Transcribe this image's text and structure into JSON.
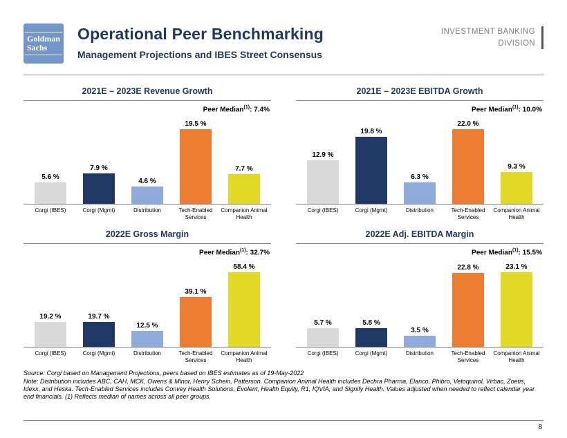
{
  "header": {
    "logo_line1": "Goldman",
    "logo_line2": "Sachs",
    "title": "Operational Peer Benchmarking",
    "subtitle": "Management Projections and IBES Street Consensus",
    "division_line1": "INVESTMENT BANKING",
    "division_line2": "DIVISION"
  },
  "bar_colors": [
    "#d9d9d9",
    "#1f3864",
    "#8faadc",
    "#ed7d31",
    "#e2d926"
  ],
  "chart_data": [
    {
      "type": "bar",
      "title": "2021E – 2023E Revenue Growth",
      "peer_median_label": "Peer Median",
      "peer_median_sup": "(1)",
      "peer_median_value": ": 7.4%",
      "categories": [
        "Corgi (IBES)",
        "Corgi (Mgmt)",
        "Distribution",
        "Tech-Enabled Services",
        "Companion Animal Health"
      ],
      "values": [
        5.6,
        7.9,
        4.6,
        19.5,
        7.7
      ],
      "value_labels": [
        "5.6 %",
        "7.9 %",
        "4.6 %",
        "19.5 %",
        "7.7 %"
      ],
      "ylim": [
        0,
        19.5
      ],
      "grid": false,
      "legend": "none"
    },
    {
      "type": "bar",
      "title": "2021E – 2023E EBITDA Growth",
      "peer_median_label": "Peer Median",
      "peer_median_sup": "(1)",
      "peer_median_value": ": 10.0%",
      "categories": [
        "Corgi (IBES)",
        "Corgi (Mgmt)",
        "Distribution",
        "Tech-Enabled Services",
        "Companion Animal Health"
      ],
      "values": [
        12.9,
        19.8,
        6.3,
        22.0,
        9.3
      ],
      "value_labels": [
        "12.9 %",
        "19.8 %",
        "6.3 %",
        "22.0 %",
        "9.3 %"
      ],
      "ylim": [
        0,
        22.0
      ],
      "grid": false,
      "legend": "none"
    },
    {
      "type": "bar",
      "title": "2022E Gross Margin",
      "peer_median_label": "Peer Median",
      "peer_median_sup": "(1)",
      "peer_median_value": ": 32.7%",
      "categories": [
        "Corgi (IBES)",
        "Corgi (Mgmt)",
        "Distribution",
        "Tech-Enabled Services",
        "Companion Animal Health"
      ],
      "values": [
        19.2,
        19.7,
        12.5,
        39.1,
        58.4
      ],
      "value_labels": [
        "19.2 %",
        "19.7 %",
        "12.5 %",
        "39.1 %",
        "58.4 %"
      ],
      "ylim": [
        0,
        58.4
      ],
      "grid": false,
      "legend": "none"
    },
    {
      "type": "bar",
      "title": "2022E Adj. EBITDA Margin",
      "peer_median_label": "Peer Median",
      "peer_median_sup": "(1)",
      "peer_median_value": ": 15.5%",
      "categories": [
        "Corgi (IBES)",
        "Corgi (Mgmt)",
        "Distribution",
        "Tech-Enabled Services",
        "Companion Animal Health"
      ],
      "values": [
        5.7,
        5.8,
        3.5,
        22.8,
        23.1
      ],
      "value_labels": [
        "5.7 %",
        "5.8 %",
        "3.5 %",
        "22.8 %",
        "23.1 %"
      ],
      "ylim": [
        0,
        23.1
      ],
      "grid": false,
      "legend": "none"
    }
  ],
  "footnotes": {
    "source": "Source: Corgi based on Management Projections, peers based on IBES estimates as of 19-May-2022",
    "note": "Note: Distribution includes ABC, CAH, MCK, Owens & Minor, Henry Schein, Patterson. Companion Animal Health includes Dechra Pharma, Elanco, Phibro, Vetoquinol, Virbac, Zoetis, Idexx, and Heska. Tech-Enabled Services includes Convey Health Solutions, Evolent, Health Equity, R1, IQVIA, and Signify Health. Values adjusted when needed to reflect calendar year end financials. (1) Reflects median of names across all peer groups."
  },
  "page_number": "8"
}
